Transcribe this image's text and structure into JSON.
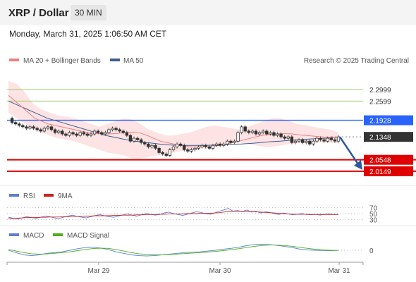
{
  "header": {
    "title": "XRP / Dollar",
    "interval": "30 MIN"
  },
  "timestamp": "Monday, March 31, 2025 1:06:50 AM CET",
  "legend": {
    "ma20": "MA 20 + Bollinger Bands",
    "ma50": "MA 50",
    "credit": "Research © 2025 Trading Central"
  },
  "rsi_legend": {
    "rsi": "RSI",
    "ma": "9MA"
  },
  "macd_legend": {
    "macd": "MACD",
    "signal": "MACD Signal"
  },
  "colors": {
    "ma20": "#f08080",
    "bollinger": "#fcd9d9",
    "ma50": "#3d5d94",
    "price": "#333333",
    "resistance": "#9ccc65",
    "pivot": "#2962ff",
    "support": "#e00000",
    "current": "#333333",
    "rsi": "#5b7fd6",
    "rsi_ma": "#d62020",
    "macd": "#5b7fd6",
    "macd_signal": "#4caf1a",
    "arrow": "#2b5a9c"
  },
  "chart_data": {
    "type": "line",
    "series_kind": "candlestick",
    "x_labels": [
      "Mar 29",
      "Mar 30",
      "Mar 31"
    ],
    "ylim": [
      1.9826,
      2.3666
    ],
    "price": [
      2.2,
      2.185,
      2.18,
      2.175,
      2.17,
      2.165,
      2.17,
      2.165,
      2.16,
      2.155,
      2.165,
      2.17,
      2.16,
      2.15,
      2.155,
      2.145,
      2.14,
      2.15,
      2.145,
      2.14,
      2.15,
      2.145,
      2.14,
      2.145,
      2.155,
      2.15,
      2.145,
      2.15,
      2.16,
      2.165,
      2.16,
      2.155,
      2.15,
      2.14,
      2.12,
      2.13,
      2.125,
      2.115,
      2.11,
      2.1,
      2.105,
      2.095,
      2.08,
      2.075,
      2.07,
      2.09,
      2.1,
      2.11,
      2.105,
      2.09,
      2.085,
      2.09,
      2.095,
      2.1,
      2.105,
      2.1,
      2.095,
      2.105,
      2.11,
      2.105,
      2.11,
      2.12,
      2.115,
      2.12,
      2.15,
      2.17,
      2.155,
      2.15,
      2.155,
      2.145,
      2.15,
      2.155,
      2.145,
      2.15,
      2.14,
      2.145,
      2.135,
      2.13,
      2.135,
      2.115,
      2.12,
      2.125,
      2.115,
      2.12,
      2.11,
      2.12,
      2.13,
      2.125,
      2.12,
      2.13,
      2.125,
      2.12,
      2.1348
    ],
    "ma20": [
      2.28,
      2.26,
      2.24,
      2.22,
      2.2,
      2.19,
      2.18,
      2.175,
      2.17,
      2.165,
      2.16,
      2.155,
      2.15,
      2.148,
      2.146,
      2.145,
      2.146,
      2.148,
      2.15,
      2.152,
      2.148,
      2.14,
      2.13,
      2.12,
      2.115,
      2.11,
      2.105,
      2.102,
      2.1,
      2.1,
      2.1,
      2.102,
      2.105,
      2.11,
      2.115,
      2.12,
      2.126,
      2.132,
      2.138,
      2.142,
      2.144,
      2.146,
      2.146,
      2.145,
      2.142,
      2.14,
      2.138,
      2.136,
      2.134,
      2.133,
      2.132
    ],
    "ma50": [
      2.26,
      2.245,
      2.23,
      2.215,
      2.2,
      2.19,
      2.18,
      2.17,
      2.16,
      2.15,
      2.14,
      2.133,
      2.126,
      2.12,
      2.116,
      2.112,
      2.108,
      2.106,
      2.105,
      2.105,
      2.105,
      2.106,
      2.107,
      2.109,
      2.11,
      2.112,
      2.115,
      2.118,
      2.12,
      2.123,
      2.125,
      2.127,
      2.129,
      2.131,
      2.133
    ],
    "bb_upper": [
      2.33,
      2.32,
      2.29,
      2.25,
      2.23,
      2.22,
      2.21,
      2.205,
      2.2,
      2.19,
      2.18,
      2.17,
      2.18,
      2.19,
      2.2,
      2.195,
      2.18,
      2.16,
      2.15,
      2.14,
      2.14,
      2.145,
      2.15,
      2.16,
      2.17,
      2.175,
      2.17,
      2.165,
      2.16,
      2.17,
      2.18,
      2.19,
      2.2,
      2.2,
      2.19,
      2.18,
      2.175,
      2.17,
      2.165,
      2.16,
      2.15
    ],
    "bb_lower": [
      2.22,
      2.2,
      2.18,
      2.16,
      2.15,
      2.14,
      2.13,
      2.125,
      2.12,
      2.11,
      2.1,
      2.09,
      2.08,
      2.075,
      2.07,
      2.06,
      2.06,
      2.065,
      2.07,
      2.075,
      2.08,
      2.085,
      2.09,
      2.095,
      2.1,
      2.105,
      2.11,
      2.12,
      2.115,
      2.11,
      2.105,
      2.1,
      2.1,
      2.105,
      2.11,
      2.112,
      2.113,
      2.114,
      2.115,
      2.114,
      2.113
    ],
    "levels": [
      {
        "name": "resistance",
        "value": 2.2999,
        "label": "2.2999",
        "kind": "resistance"
      },
      {
        "name": "resistance",
        "value": 2.2599,
        "label": "2.2599",
        "kind": "resistance"
      },
      {
        "name": "pivot",
        "value": 2.1928,
        "label": "2.1928",
        "kind": "pivot"
      },
      {
        "name": "current",
        "value": 2.1348,
        "label": "2.1348",
        "kind": "current"
      },
      {
        "name": "support",
        "value": 2.0548,
        "label": "2.0548",
        "kind": "support"
      },
      {
        "name": "support",
        "value": 2.0149,
        "label": "2.0149",
        "kind": "support"
      }
    ],
    "rsi": {
      "ylim": [
        20,
        80
      ],
      "levels": [
        70,
        50,
        30
      ],
      "tick_labels": [
        "70",
        "50",
        "30"
      ],
      "values": [
        38,
        35,
        33,
        36,
        40,
        37,
        35,
        38,
        42,
        40,
        36,
        34,
        38,
        42,
        45,
        41,
        38,
        36,
        40,
        44,
        47,
        43,
        40,
        38,
        42,
        46,
        49,
        45,
        42,
        46,
        50,
        48,
        45,
        47,
        52,
        55,
        50,
        47,
        44,
        48,
        52,
        56,
        54,
        50,
        48,
        52,
        58,
        62,
        67,
        58,
        60,
        57,
        62,
        55,
        58,
        52,
        56,
        54,
        50,
        47,
        52,
        49,
        46,
        48,
        50,
        47,
        46,
        48,
        45,
        48,
        49,
        47,
        48
      ],
      "ma": [
        34,
        34,
        35,
        36,
        37,
        37,
        37,
        38,
        38,
        39,
        39,
        39,
        40,
        40,
        41,
        41,
        41,
        42,
        42,
        43,
        43,
        43,
        43,
        44,
        44,
        45,
        45,
        45,
        46,
        46,
        47,
        47,
        47,
        48,
        48,
        49,
        49,
        49,
        49,
        50,
        50,
        50,
        51,
        51,
        51,
        52,
        53,
        55,
        57,
        58,
        58,
        58,
        57,
        57,
        56,
        55,
        54,
        53,
        52,
        51,
        50,
        49,
        48,
        48,
        48,
        48,
        47,
        47,
        47,
        47,
        47,
        47,
        47
      ]
    },
    "macd": {
      "ylim": [
        -0.012,
        0.012
      ],
      "levels": [
        0
      ],
      "tick_labels": [
        "0"
      ],
      "macd": [
        0,
        -0.003,
        -0.006,
        -0.007,
        -0.006,
        -0.004,
        -0.003,
        -0.002,
        0,
        0.002,
        0.0035,
        0.004,
        0.003,
        0.001,
        -0.002,
        -0.004,
        -0.006,
        -0.007,
        -0.0075,
        -0.007,
        -0.006,
        -0.005,
        -0.004,
        -0.003,
        -0.0025,
        -0.002,
        -0.001,
        0,
        0.0015,
        0.0025,
        0.004,
        0.006,
        0.0075,
        0.0078,
        0.0075,
        0.0065,
        0.005,
        0.0035,
        0.0015,
        0.0005,
        0,
        -0.0003,
        -0.0005,
        -0.0002
      ],
      "signal": [
        0.001,
        -0.001,
        -0.003,
        -0.0045,
        -0.005,
        -0.0048,
        -0.004,
        -0.003,
        -0.002,
        -0.0005,
        0.001,
        0.0022,
        0.0028,
        0.0025,
        0.001,
        -0.001,
        -0.003,
        -0.0045,
        -0.0055,
        -0.006,
        -0.006,
        -0.0055,
        -0.005,
        -0.0043,
        -0.0036,
        -0.003,
        -0.0023,
        -0.0015,
        -0.0005,
        0.0008,
        0.002,
        0.0035,
        0.005,
        0.0062,
        0.0068,
        0.0068,
        0.0062,
        0.0052,
        0.0038,
        0.0025,
        0.0013,
        0.0005,
        0,
        -0.0001
      ]
    }
  }
}
